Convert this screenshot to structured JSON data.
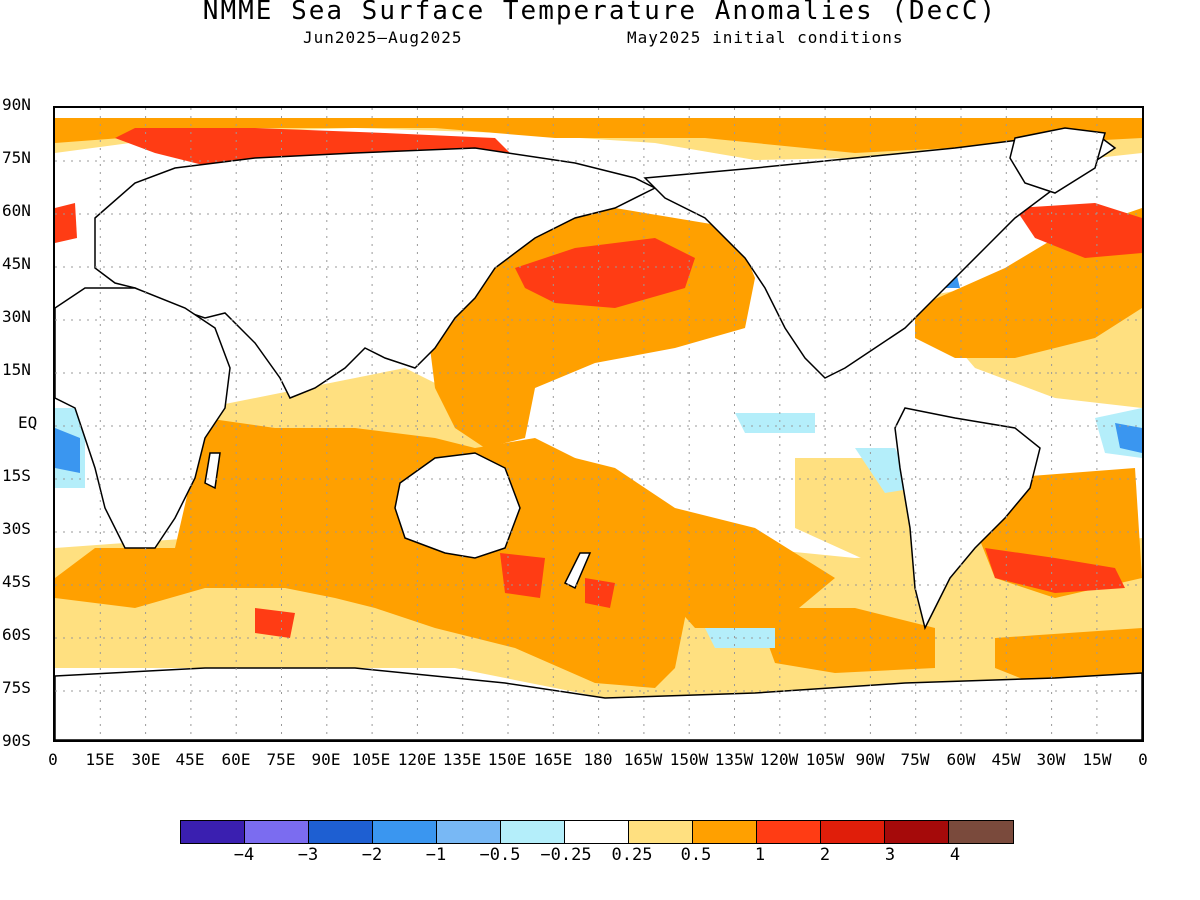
{
  "title": "NMME Sea Surface Temperature Anomalies (DecC)",
  "subtitle_left": "Jun2025–Aug2025",
  "subtitle_right": "May2025 initial conditions",
  "lat_labels": [
    "90N",
    "75N",
    "60N",
    "45N",
    "30N",
    "15N",
    "EQ",
    "15S",
    "30S",
    "45S",
    "60S",
    "75S",
    "90S"
  ],
  "lon_labels": [
    "0",
    "15E",
    "30E",
    "45E",
    "60E",
    "75E",
    "90E",
    "105E",
    "120E",
    "135E",
    "150E",
    "165E",
    "180",
    "165W",
    "150W",
    "135W",
    "120W",
    "105W",
    "90W",
    "75W",
    "60W",
    "45W",
    "30W",
    "15W",
    "0"
  ],
  "colorbar": {
    "colors": [
      "#3a1fb0",
      "#7b6cf0",
      "#1e5fd2",
      "#3a96f0",
      "#78b8f5",
      "#b4eefa",
      "#ffffff",
      "#ffe080",
      "#ffa000",
      "#ff3c14",
      "#e01e0a",
      "#a50a0a",
      "#7a4a3c"
    ],
    "labels": [
      "−4",
      "−3",
      "−2",
      "−1",
      "−0.5",
      "−0.25",
      "0.25",
      "0.5",
      "1",
      "2",
      "3",
      "4"
    ]
  },
  "map": {
    "lat_range": [
      -90,
      90
    ],
    "lon_range": [
      0,
      360
    ],
    "grid": true
  }
}
